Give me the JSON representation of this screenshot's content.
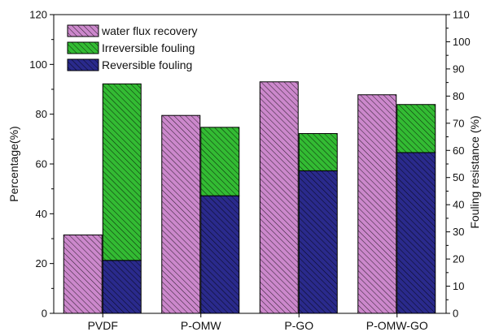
{
  "chart_data": {
    "type": "bar",
    "categories": [
      "PVDF",
      "P-OMW",
      "P-GO",
      "P-OMW-GO"
    ],
    "series": [
      {
        "name": "water flux recovery",
        "axis": "left",
        "stack": "a",
        "values": [
          31.5,
          79.5,
          93.0,
          87.8
        ],
        "color": "#cc88cc"
      },
      {
        "name": "Reversible fouling",
        "axis": "right",
        "stack": "b",
        "values": [
          19.5,
          43.3,
          52.5,
          59.2
        ],
        "color": "#2a2a8c"
      },
      {
        "name": "Irreversible fouling",
        "axis": "right",
        "stack": "b",
        "values": [
          65.0,
          25.2,
          13.7,
          17.7
        ],
        "color": "#33bb33"
      }
    ],
    "legend": [
      "water flux recovery",
      "Irreversible fouling",
      "Reversible fouling"
    ],
    "ylabel": "Percentage(%)",
    "y2label": "Fouling resistance (%)",
    "xlabel": "",
    "ylim": [
      0,
      120
    ],
    "y2lim": [
      0,
      110
    ],
    "yticks": [
      "0",
      "20",
      "40",
      "60",
      "80",
      "100",
      "120"
    ],
    "y2ticks": [
      "0",
      "10",
      "20",
      "30",
      "40",
      "50",
      "60",
      "70",
      "80",
      "90",
      "100",
      "110"
    ],
    "legend_position": "top-left",
    "grid": false
  }
}
